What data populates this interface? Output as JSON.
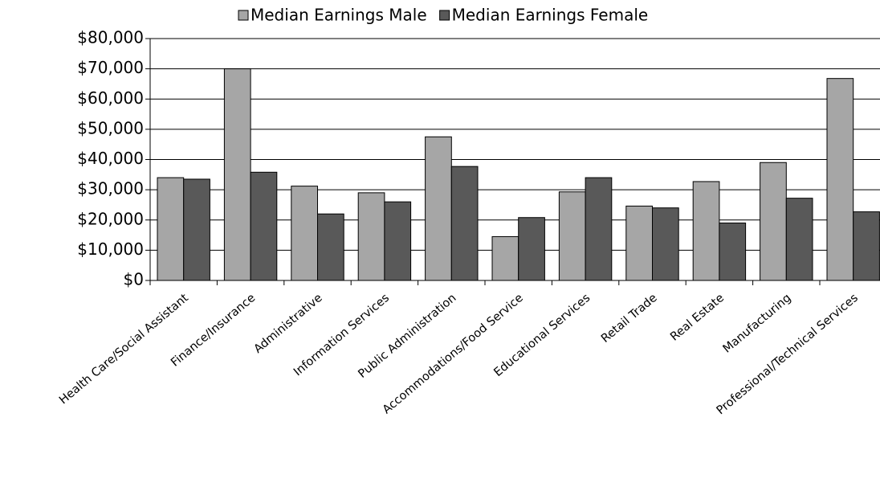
{
  "chart_data": {
    "type": "bar",
    "categories": [
      "Health Care/Social Assistant",
      "Finance/Insurance",
      "Administrative",
      "Information Services",
      "Public Administration",
      "Accommodations/Food Service",
      "Educational Services",
      "Retail Trade",
      "Real Estate",
      "Manufacturing",
      "Professional/Technical Services"
    ],
    "series": [
      {
        "name": "Median Earnings Male",
        "color": "#a6a6a6",
        "values": [
          34000,
          70000,
          31200,
          29000,
          47500,
          14500,
          29300,
          24600,
          32700,
          39000,
          66800
        ]
      },
      {
        "name": "Median Earnings Female",
        "color": "#595959",
        "values": [
          33500,
          35800,
          22000,
          26000,
          37700,
          20800,
          34000,
          24000,
          19000,
          27200,
          22700
        ]
      }
    ],
    "ylim": [
      0,
      80000
    ],
    "yticks": [
      {
        "value": 0,
        "label": "$0"
      },
      {
        "value": 10000,
        "label": "$10,000"
      },
      {
        "value": 20000,
        "label": "$20,000"
      },
      {
        "value": 30000,
        "label": "$30,000"
      },
      {
        "value": 40000,
        "label": "$40,000"
      },
      {
        "value": 50000,
        "label": "$50,000"
      },
      {
        "value": 60000,
        "label": "$60,000"
      },
      {
        "value": 70000,
        "label": "$70,000"
      },
      {
        "value": 80000,
        "label": "$80,000"
      }
    ],
    "grid": true,
    "legend": "top"
  }
}
